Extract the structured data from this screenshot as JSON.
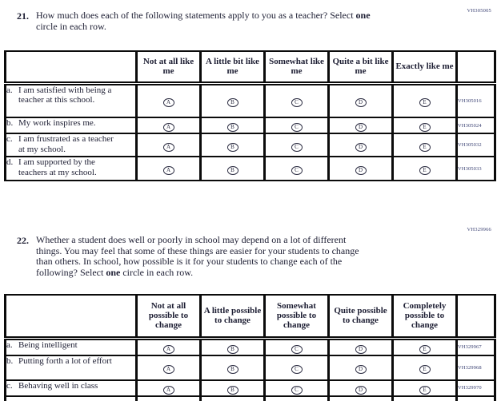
{
  "colors": {
    "text": "#1d1e33",
    "border": "#0b0b0b",
    "code_navy": "#3b4273"
  },
  "q21": {
    "number": "21.",
    "code": "VH305005",
    "prompt_lines": [
      {
        "pre": "How much does each of the following statements apply to you as a teacher? Select ",
        "bold": "one",
        "post": ""
      },
      {
        "pre": "circle in each row.",
        "bold": "",
        "post": ""
      }
    ],
    "table": {
      "columns": [
        "Not at all like me",
        "A little bit like me",
        "Somewhat like me",
        "Quite a bit like me",
        "Exactly like me"
      ],
      "options": [
        "A",
        "B",
        "C",
        "D",
        "E"
      ],
      "rows": [
        {
          "letter": "a.",
          "text": "I am satisfied with being a teacher at this school.",
          "code": "VH305016"
        },
        {
          "letter": "b.",
          "text": "My work inspires me.",
          "code": "VH305024"
        },
        {
          "letter": "c.",
          "text": "I am frustrated as a teacher at my school.",
          "code": "VH305032"
        },
        {
          "letter": "d.",
          "text": "I am supported by the teachers at my school.",
          "code": "VH305033"
        }
      ]
    }
  },
  "q22": {
    "number": "22.",
    "code": "VH329966",
    "prompt_lines": [
      {
        "pre": "Whether a student does well or poorly in school may depend on a lot of different",
        "bold": "",
        "post": ""
      },
      {
        "pre": "things. You may feel that some of these things are easier for your students to change",
        "bold": "",
        "post": ""
      },
      {
        "pre": "than others. In school, how possible is it for your students to change each of the",
        "bold": "",
        "post": ""
      },
      {
        "pre": "following? Select ",
        "bold": "one",
        "post": " circle in each row."
      }
    ],
    "table": {
      "columns": [
        "Not at all possible to change",
        "A little possible to change",
        "Somewhat possible to change",
        "Quite possible to change",
        "Completely possible to change"
      ],
      "options": [
        "A",
        "B",
        "C",
        "D",
        "E"
      ],
      "rows": [
        {
          "letter": "a.",
          "text": "Being intelligent",
          "code": "VH329967"
        },
        {
          "letter": "b.",
          "text": "Putting forth a lot of effort",
          "code": "VH329968"
        },
        {
          "letter": "c.",
          "text": "Behaving well in class",
          "code": "VH329970"
        }
      ]
    }
  }
}
